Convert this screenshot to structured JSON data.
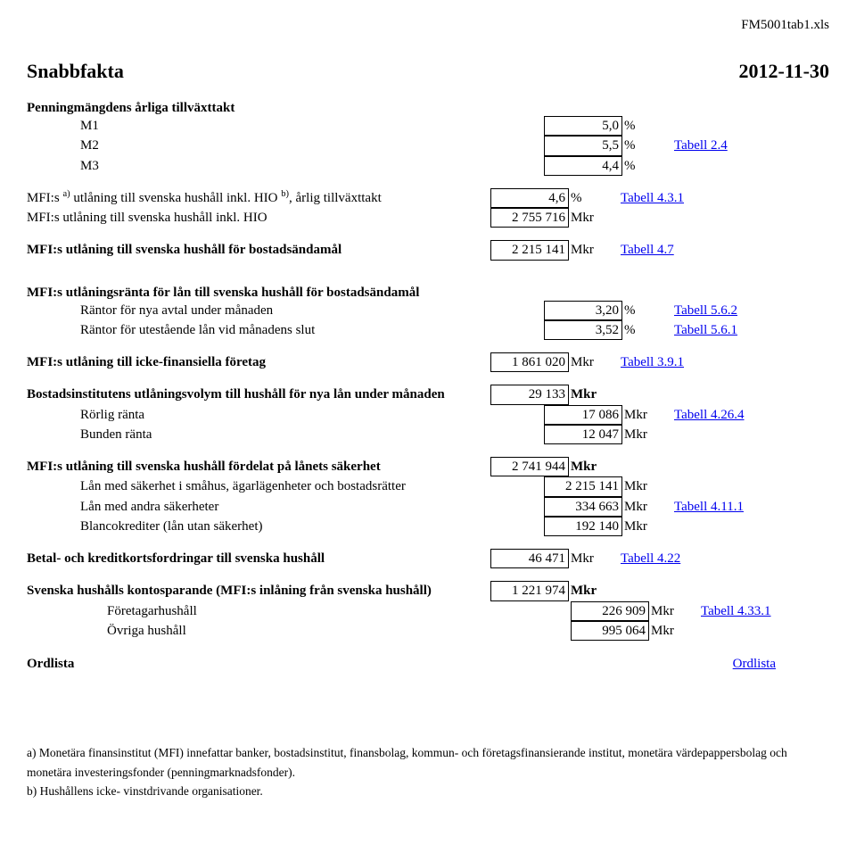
{
  "filename": "FM5001tab1.xls",
  "title": "Snabbfakta",
  "date": "2012-11-30",
  "sections": {
    "penning": {
      "heading": "Penningmängdens årliga tillväxttakt",
      "m1": {
        "label": "M1",
        "value": "5,0",
        "unit": "%"
      },
      "m2": {
        "label": "M2",
        "value": "5,5",
        "unit": "%",
        "link": "Tabell 2.4"
      },
      "m3": {
        "label": "M3",
        "value": "4,4",
        "unit": "%"
      }
    },
    "mfi_hio": {
      "row1_label_pre": "MFI:s ",
      "row1_sup": "a)",
      "row1_label_mid": " utlåning till svenska hushåll inkl. HIO ",
      "row1_sup2": "b)",
      "row1_label_post": ", årlig tillväxttakt",
      "row1_value": "4,6",
      "row1_unit": "%",
      "row2_label": "MFI:s utlåning till svenska hushåll inkl. HIO",
      "row2_value": "2 755 716",
      "row2_unit": "Mkr",
      "link": "Tabell 4.3.1"
    },
    "bostad": {
      "label": "MFI:s utlåning till svenska hushåll för bostadsändamål",
      "value": "2 215 141",
      "unit": "Mkr",
      "link": "Tabell 4.7"
    },
    "ranta": {
      "heading": "MFI:s utlåningsränta för lån till svenska hushåll för bostadsändamål",
      "r1": {
        "label": "Räntor för nya avtal under månaden",
        "value": "3,20",
        "unit": "%",
        "link": "Tabell 5.6.2"
      },
      "r2": {
        "label": "Räntor för utestående lån vid månadens slut",
        "value": "3,52",
        "unit": "%",
        "link": "Tabell 5.6.1"
      }
    },
    "icke_fin": {
      "label": "MFI:s utlåning till icke-finansiella företag",
      "value": "1 861 020",
      "unit": "Mkr",
      "link": "Tabell 3.9.1"
    },
    "bostadsinst": {
      "heading": "Bostadsinstitutens utlåningsvolym till hushåll för nya lån under månaden",
      "total_value": "29 133",
      "total_unit": "Mkr",
      "r1": {
        "label": "Rörlig ränta",
        "value": "17 086",
        "unit": "Mkr",
        "link": "Tabell 4.26.4"
      },
      "r2": {
        "label": "Bunden ränta",
        "value": "12 047",
        "unit": "Mkr"
      }
    },
    "sakerhet": {
      "heading": "MFI:s utlåning till svenska hushåll fördelat på lånets säkerhet",
      "total_value": "2 741 944",
      "total_unit": "Mkr",
      "r1": {
        "label": "Lån med säkerhet i småhus, ägarlägenheter och bostadsrätter",
        "value": "2 215 141",
        "unit": "Mkr"
      },
      "r2": {
        "label": "Lån med andra säkerheter",
        "value": "334 663",
        "unit": "Mkr",
        "link": "Tabell 4.11.1"
      },
      "r3": {
        "label": "Blancokrediter (lån utan säkerhet)",
        "value": "192 140",
        "unit": "Mkr"
      }
    },
    "betalkort": {
      "label": "Betal- och kreditkortsfordringar till svenska hushåll",
      "value": "46 471",
      "unit": "Mkr",
      "link": "Tabell 4.22"
    },
    "kontospar": {
      "heading": "Svenska hushålls kontosparande (MFI:s inlåning från svenska hushåll)",
      "total_value": "1 221 974",
      "total_unit": "Mkr",
      "r1": {
        "label": "Företagarhushåll",
        "value": "226 909",
        "unit": "Mkr",
        "link": "Tabell 4.33.1"
      },
      "r2": {
        "label": "Övriga hushåll",
        "value": "995 064",
        "unit": "Mkr"
      }
    }
  },
  "ordlista_label": "Ordlista",
  "ordlista_link": "Ordlista",
  "footnotes": {
    "a": "a) Monetära finansinstitut (MFI) innefattar banker, bostadsinstitut, finansbolag, kommun- och företagsfinansierande institut, monetära värdepappersbolag och monetära investeringsfonder (penningmarknadsfonder).",
    "b": "b) Hushållens icke- vinstdrivande organisationer."
  }
}
